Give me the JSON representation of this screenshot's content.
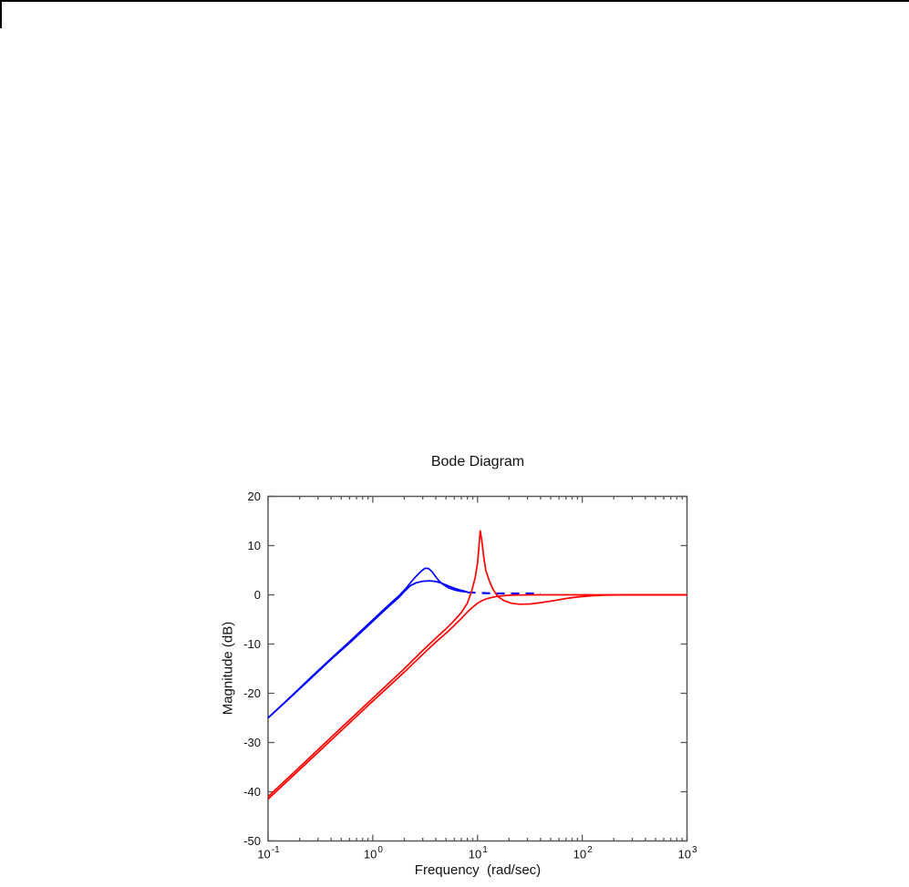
{
  "page": {
    "border_note": "partial black frame at top-left of screenshot"
  },
  "chart_data": {
    "type": "line",
    "title": "Bode Diagram",
    "xlabel": "Frequency  (rad/sec)",
    "ylabel": "Magnitude (dB)",
    "x_scale": "log",
    "xlim": [
      0.1,
      1000
    ],
    "ylim": [
      -50,
      20
    ],
    "grid": false,
    "legend": "none",
    "axis_color": "#595959",
    "y_tick_labels": [
      "20",
      "10",
      "0",
      "-10",
      "-20",
      "-30",
      "-40",
      "-50"
    ],
    "y_tick_values": [
      20,
      10,
      0,
      -10,
      -20,
      -30,
      -40,
      -50
    ],
    "x_tick_base": "10",
    "x_tick_exponents": [
      "-1",
      "0",
      "1",
      "2",
      "3"
    ],
    "x_tick_values": [
      0.1,
      1,
      10,
      100,
      1000
    ],
    "series": [
      {
        "name": "blue-underdamped-model",
        "color": "#0000ff",
        "width": 1.7,
        "dash": "",
        "points": [
          [
            0.1,
            -25
          ],
          [
            0.15,
            -21.5
          ],
          [
            0.25,
            -17.0
          ],
          [
            0.4,
            -12.9
          ],
          [
            0.6,
            -9.5
          ],
          [
            0.9,
            -6.0
          ],
          [
            1.2,
            -3.5
          ],
          [
            1.5,
            -1.6
          ],
          [
            1.8,
            -0.1
          ],
          [
            2.05,
            1.2
          ],
          [
            2.3,
            2.5
          ],
          [
            2.6,
            3.8
          ],
          [
            2.9,
            4.8
          ],
          [
            3.15,
            5.4
          ],
          [
            3.4,
            5.35
          ],
          [
            3.65,
            4.8
          ],
          [
            3.95,
            3.8
          ],
          [
            4.3,
            2.8
          ],
          [
            4.7,
            2.1
          ],
          [
            5.3,
            1.4
          ],
          [
            6.2,
            0.9
          ],
          [
            7.0,
            0.7
          ],
          [
            8.0,
            0.55
          ]
        ]
      },
      {
        "name": "blue-damped-model",
        "color": "#0000ff",
        "width": 1.7,
        "dash": "",
        "points": [
          [
            0.1,
            -25
          ],
          [
            0.15,
            -21.6
          ],
          [
            0.25,
            -17.2
          ],
          [
            0.4,
            -13.1
          ],
          [
            0.6,
            -9.8
          ],
          [
            0.9,
            -6.3
          ],
          [
            1.2,
            -3.8
          ],
          [
            1.5,
            -1.9
          ],
          [
            1.8,
            -0.4
          ],
          [
            2.05,
            0.9
          ],
          [
            2.3,
            1.9
          ],
          [
            2.6,
            2.45
          ],
          [
            3.0,
            2.75
          ],
          [
            3.5,
            2.85
          ],
          [
            4.0,
            2.7
          ],
          [
            4.5,
            2.4
          ],
          [
            5.0,
            2.0
          ],
          [
            5.6,
            1.6
          ],
          [
            6.4,
            1.15
          ],
          [
            7.2,
            0.85
          ],
          [
            8.0,
            0.6
          ]
        ]
      },
      {
        "name": "blue-flat-tail",
        "color": "#0000ff",
        "width": 2.2,
        "dash": "9 7",
        "points": [
          [
            8.0,
            0.5
          ],
          [
            10,
            0.4
          ],
          [
            14,
            0.3
          ],
          [
            20,
            0.28
          ],
          [
            30,
            0.28
          ],
          [
            40,
            0.28
          ]
        ]
      },
      {
        "name": "red-damped-model",
        "color": "#ff0000",
        "width": 1.7,
        "dash": "",
        "points": [
          [
            0.1,
            -41.5
          ],
          [
            0.2,
            -35.5
          ],
          [
            0.5,
            -27.6
          ],
          [
            1.0,
            -21.6
          ],
          [
            2.0,
            -15.7
          ],
          [
            3.0,
            -12.1
          ],
          [
            4.0,
            -9.6
          ],
          [
            5.0,
            -7.8
          ],
          [
            6.0,
            -6.2
          ],
          [
            7.0,
            -4.8
          ],
          [
            8.0,
            -3.5
          ],
          [
            9.0,
            -2.5
          ],
          [
            10,
            -1.7
          ],
          [
            11,
            -1.2
          ],
          [
            12,
            -0.85
          ],
          [
            13.5,
            -0.55
          ],
          [
            15,
            -0.35
          ],
          [
            17,
            -0.2
          ],
          [
            20,
            -0.1
          ],
          [
            25,
            -0.04
          ],
          [
            35,
            0
          ],
          [
            100,
            0
          ],
          [
            1000,
            0
          ]
        ]
      },
      {
        "name": "red-resonant-model",
        "color": "#ff0000",
        "width": 1.7,
        "dash": "",
        "points": [
          [
            0.1,
            -41
          ],
          [
            0.2,
            -35
          ],
          [
            0.5,
            -27
          ],
          [
            1.0,
            -21
          ],
          [
            2.0,
            -15
          ],
          [
            3.0,
            -11.3
          ],
          [
            4.0,
            -8.8
          ],
          [
            5.0,
            -6.9
          ],
          [
            6.0,
            -5.2
          ],
          [
            7.0,
            -3.6
          ],
          [
            8.0,
            -1.7
          ],
          [
            8.8,
            0.8
          ],
          [
            9.5,
            3.5
          ],
          [
            10.0,
            6.5
          ],
          [
            10.3,
            9.5
          ],
          [
            10.6,
            13.0
          ],
          [
            11.0,
            11.0
          ],
          [
            11.5,
            7.5
          ],
          [
            12.0,
            5.0
          ],
          [
            13.0,
            2.8
          ],
          [
            14.0,
            1.2
          ],
          [
            15.0,
            0.2
          ],
          [
            16.0,
            -0.5
          ],
          [
            18.0,
            -1.2
          ],
          [
            21.0,
            -1.7
          ],
          [
            25.0,
            -1.9
          ],
          [
            32.0,
            -1.85
          ],
          [
            40.0,
            -1.6
          ],
          [
            55.0,
            -1.15
          ],
          [
            70.0,
            -0.75
          ],
          [
            90.0,
            -0.45
          ],
          [
            120.0,
            -0.2
          ],
          [
            160.0,
            -0.08
          ],
          [
            220.0,
            -0.02
          ],
          [
            300.0,
            0
          ],
          [
            1000,
            0
          ]
        ]
      }
    ]
  }
}
